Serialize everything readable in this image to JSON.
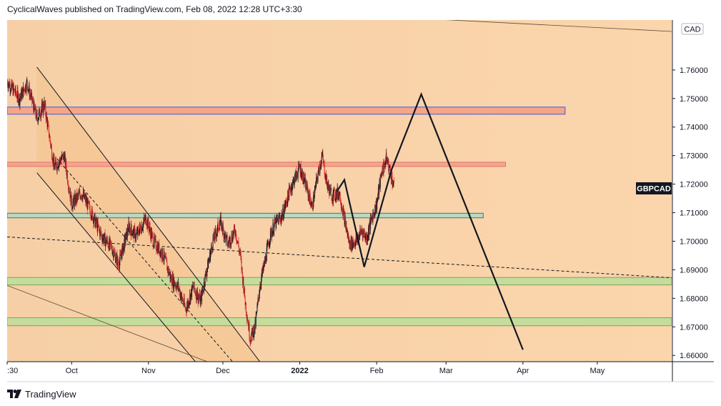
{
  "header": {
    "attribution": "CyclicalWaves published on TradingView.com, Feb 08, 2022 12:28 UTC+3:30"
  },
  "footer": {
    "brand": "TradingView"
  },
  "chart_data": {
    "type": "candlestick",
    "symbol": "GBPCAD",
    "currency": "CAD",
    "y_ticks": [
      "1.76000",
      "1.75000",
      "1.74000",
      "1.73000",
      "1.72000",
      "1.71000",
      "1.70000",
      "1.69000",
      "1.68000",
      "1.67000",
      "1.66000"
    ],
    "ylim": [
      1.6578,
      1.7775
    ],
    "x_ticks": [
      {
        "label": ":30",
        "date": "2021-09-05"
      },
      {
        "label": "Oct",
        "date": "2021-10-01"
      },
      {
        "label": "Nov",
        "date": "2021-11-01"
      },
      {
        "label": "Dec",
        "date": "2021-12-01"
      },
      {
        "label": "2022",
        "date": "2022-01-01",
        "bold": true
      },
      {
        "label": "Feb",
        "date": "2022-02-01"
      },
      {
        "label": "Mar",
        "date": "2022-03-01"
      },
      {
        "label": "Apr",
        "date": "2022-04-01"
      },
      {
        "label": "May",
        "date": "2022-05-01"
      }
    ],
    "last_price_label": "GBPCAD",
    "last_price": 1.7184,
    "price_path": [
      [
        "2021-09-05",
        1.756
      ],
      [
        "2021-09-10",
        1.75
      ],
      [
        "2021-09-13",
        1.7555
      ],
      [
        "2021-09-17",
        1.743
      ],
      [
        "2021-09-20",
        1.748
      ],
      [
        "2021-09-24",
        1.726
      ],
      [
        "2021-09-28",
        1.73
      ],
      [
        "2021-10-01",
        1.713
      ],
      [
        "2021-10-05",
        1.717
      ],
      [
        "2021-10-09",
        1.71
      ],
      [
        "2021-10-13",
        1.702
      ],
      [
        "2021-10-17",
        1.698
      ],
      [
        "2021-10-20",
        1.692
      ],
      [
        "2021-10-24",
        1.705
      ],
      [
        "2021-10-27",
        1.702
      ],
      [
        "2021-10-31",
        1.708
      ],
      [
        "2021-11-03",
        1.7
      ],
      [
        "2021-11-07",
        1.695
      ],
      [
        "2021-11-10",
        1.687
      ],
      [
        "2021-11-13",
        1.684
      ],
      [
        "2021-11-16",
        1.676
      ],
      [
        "2021-11-19",
        1.684
      ],
      [
        "2021-11-22",
        1.679
      ],
      [
        "2021-11-24",
        1.688
      ],
      [
        "2021-11-27",
        1.7
      ],
      [
        "2021-11-30",
        1.707
      ],
      [
        "2021-12-03",
        1.699
      ],
      [
        "2021-12-06",
        1.704
      ],
      [
        "2021-12-08",
        1.695
      ],
      [
        "2021-12-10",
        1.679
      ],
      [
        "2021-12-12",
        1.666
      ],
      [
        "2021-12-14",
        1.67
      ],
      [
        "2021-12-16",
        1.685
      ],
      [
        "2021-12-18",
        1.693
      ],
      [
        "2021-12-20",
        1.702
      ],
      [
        "2021-12-22",
        1.706
      ],
      [
        "2021-12-25",
        1.709
      ],
      [
        "2021-12-28",
        1.718
      ],
      [
        "2022-01-01",
        1.726
      ],
      [
        "2022-01-04",
        1.718
      ],
      [
        "2022-01-06",
        1.712
      ],
      [
        "2022-01-08",
        1.722
      ],
      [
        "2022-01-10",
        1.73
      ],
      [
        "2022-01-12",
        1.72
      ],
      [
        "2022-01-14",
        1.716
      ],
      [
        "2022-01-17",
        1.717
      ],
      [
        "2022-01-19",
        1.708
      ],
      [
        "2022-01-21",
        1.699
      ],
      [
        "2022-01-24",
        1.7
      ],
      [
        "2022-01-26",
        1.704
      ],
      [
        "2022-01-28",
        1.701
      ],
      [
        "2022-01-30",
        1.708
      ],
      [
        "2022-02-01",
        1.713
      ],
      [
        "2022-02-03",
        1.724
      ],
      [
        "2022-02-05",
        1.729
      ],
      [
        "2022-02-07",
        1.723
      ],
      [
        "2022-02-08",
        1.7184
      ]
    ],
    "zones": [
      {
        "from_date": "2021-09-05",
        "to_date": "2022-04-18",
        "ymin": 1.7445,
        "ymax": 1.747,
        "fill": "#f4a58a",
        "stroke": "#3b5bdb"
      },
      {
        "from_date": "2021-09-05",
        "to_date": "2022-03-25",
        "ymin": 1.7262,
        "ymax": 1.7277,
        "fill": "#f4a58a",
        "stroke": "#e57373"
      },
      {
        "from_date": "2021-09-05",
        "to_date": "2022-03-16",
        "ymin": 1.7082,
        "ymax": 1.7098,
        "fill": "#b8d8c0",
        "stroke": "#2f7f7f"
      },
      {
        "from_date": "2021-09-05",
        "to_date": "2022-05-31",
        "ymin": 1.6847,
        "ymax": 1.6873,
        "fill": "#c5dc9c",
        "stroke": "#7aa55a"
      },
      {
        "from_date": "2021-09-05",
        "to_date": "2022-05-31",
        "ymin": 1.6704,
        "ymax": 1.6732,
        "fill": "#c5dc9c",
        "stroke": "#7aa55a"
      }
    ],
    "projection_path": [
      [
        "2022-01-16",
        1.7175
      ],
      [
        "2022-01-19",
        1.7215
      ],
      [
        "2022-01-27",
        1.691
      ],
      [
        "2022-02-07",
        1.725
      ],
      [
        "2022-02-19",
        1.7515
      ],
      [
        "2022-04-01",
        1.662
      ]
    ],
    "channel_lines": [
      {
        "points": [
          [
            "2021-09-17",
            1.761
          ],
          [
            "2021-12-16",
            1.6577
          ]
        ],
        "style": "solid"
      },
      {
        "points": [
          [
            "2021-09-17",
            1.724
          ],
          [
            "2021-11-20",
            1.6577
          ]
        ],
        "style": "solid"
      },
      {
        "points": [
          [
            "2021-09-25",
            1.729
          ],
          [
            "2021-12-05",
            1.6577
          ]
        ],
        "style": "dashed"
      },
      {
        "points": [
          [
            "2021-09-05",
            1.7015
          ],
          [
            "2022-05-31",
            1.6872
          ]
        ],
        "style": "dashed"
      },
      {
        "points": [
          [
            "2021-09-05",
            1.6845
          ],
          [
            "2021-11-25",
            1.6577
          ]
        ],
        "style": "solid-thin"
      },
      {
        "points": [
          [
            "2022-02-20",
            1.778
          ],
          [
            "2022-05-31",
            1.7735
          ]
        ],
        "style": "solid-thin"
      }
    ]
  }
}
